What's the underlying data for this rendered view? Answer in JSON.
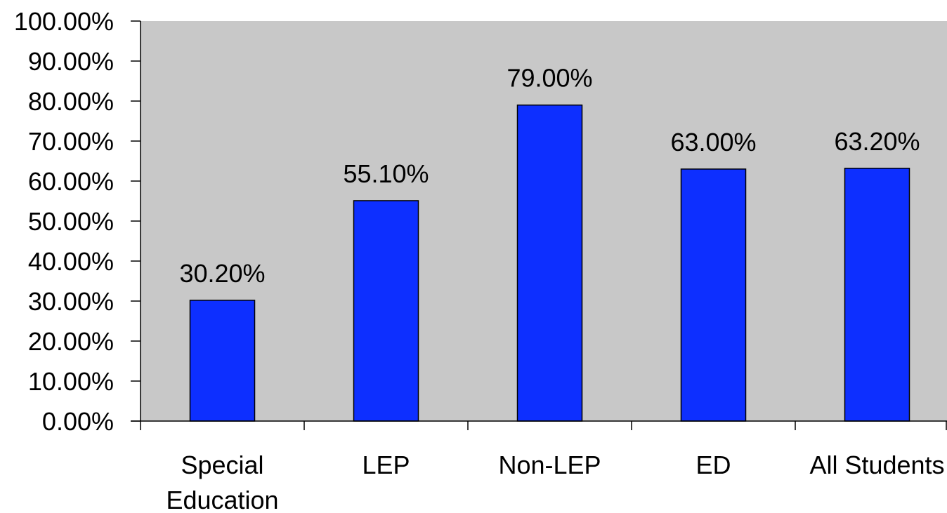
{
  "chart_data": {
    "type": "bar",
    "categories": [
      "Special Education",
      "LEP",
      "Non-LEP",
      "ED",
      "All Students"
    ],
    "category_lines": [
      [
        "Special",
        "Education"
      ],
      [
        "LEP"
      ],
      [
        "Non-LEP"
      ],
      [
        "ED"
      ],
      [
        "All Students"
      ]
    ],
    "values": [
      30.2,
      55.1,
      79.0,
      63.0,
      63.2
    ],
    "data_labels": [
      "30.20%",
      "55.10%",
      "79.00%",
      "63.00%",
      "63.20%"
    ],
    "ylim": [
      0,
      100
    ],
    "yticks": [
      0,
      10,
      20,
      30,
      40,
      50,
      60,
      70,
      80,
      90,
      100
    ],
    "ytick_labels": [
      "0.00%",
      "10.00%",
      "20.00%",
      "30.00%",
      "40.00%",
      "50.00%",
      "60.00%",
      "70.00%",
      "80.00%",
      "90.00%",
      "100.00%"
    ],
    "title": "",
    "xlabel": "",
    "ylabel": "",
    "grid": false,
    "legend": "none",
    "colors": {
      "bar_fill": "#0d2fff",
      "bar_stroke": "#000000",
      "plot_background": "#c8c8c8",
      "axis": "#000000"
    }
  }
}
